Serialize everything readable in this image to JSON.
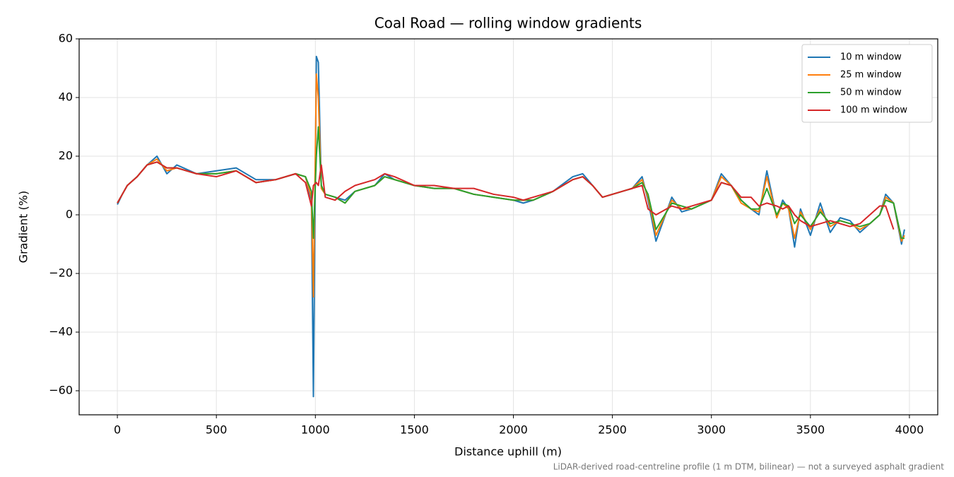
{
  "chart_data": {
    "type": "line",
    "title": "Coal Road — rolling window gradients",
    "x_label": "Distance uphill (m)",
    "y_label": "Gradient (%)",
    "footnote": "LiDAR-derived road-centreline profile (1 m DTM, bilinear) — not a surveyed asphalt gradient",
    "x": [
      0,
      25,
      50,
      100,
      150,
      200,
      250,
      300,
      400,
      500,
      600,
      700,
      800,
      900,
      950,
      980,
      990,
      1005,
      1015,
      1030,
      1050,
      1100,
      1150,
      1200,
      1300,
      1350,
      1400,
      1500,
      1600,
      1700,
      1800,
      1900,
      2000,
      2050,
      2100,
      2200,
      2300,
      2350,
      2400,
      2450,
      2500,
      2600,
      2650,
      2680,
      2720,
      2800,
      2850,
      2900,
      3000,
      3050,
      3100,
      3150,
      3200,
      3240,
      3280,
      3330,
      3360,
      3390,
      3420,
      3450,
      3500,
      3550,
      3600,
      3650,
      3700,
      3750,
      3800,
      3850,
      3880,
      3920,
      3960,
      3975
    ],
    "series": [
      {
        "name": "10 m window",
        "color": "#1f77b4",
        "values": [
          3.5,
          7,
          10,
          13,
          17,
          20,
          14,
          17,
          14,
          15,
          16,
          12,
          12,
          14,
          13,
          5,
          -62,
          54,
          52,
          10,
          7,
          6,
          5,
          8,
          10,
          14,
          12,
          10,
          9,
          9,
          7,
          6,
          5,
          4,
          5,
          8,
          13,
          14,
          10,
          6,
          7,
          9,
          13,
          5,
          -9,
          6,
          1,
          2,
          5,
          14,
          10,
          5,
          2,
          0,
          15,
          -1,
          5,
          2,
          -11,
          2,
          -7,
          4,
          -6,
          -1,
          -2,
          -6,
          -3,
          0,
          7,
          4,
          -10,
          -5
        ]
      },
      {
        "name": "25 m window",
        "color": "#ff7f0e",
        "values": [
          4,
          7,
          10,
          13,
          17,
          19,
          15,
          16,
          14,
          14,
          15,
          11,
          12,
          14,
          13,
          6,
          -28,
          48,
          40,
          9,
          7,
          6,
          4,
          8,
          10,
          13,
          12,
          10,
          9,
          9,
          7,
          6,
          5,
          5,
          5,
          8,
          12,
          13,
          10,
          6,
          7,
          9,
          12,
          6,
          -7,
          5,
          2,
          2,
          5,
          13,
          10,
          4,
          2,
          1,
          13,
          -1,
          4,
          2,
          -8,
          1,
          -5,
          2,
          -4,
          -2,
          -3,
          -5,
          -3,
          0,
          6,
          4,
          -9,
          -7
        ]
      },
      {
        "name": "50 m window",
        "color": "#2ca02c",
        "values": [
          4,
          7,
          10,
          13,
          17,
          18,
          16,
          16,
          14,
          14,
          15,
          11,
          12,
          14,
          13,
          8,
          -8,
          20,
          30,
          10,
          7,
          6,
          4,
          8,
          10,
          13,
          12,
          10,
          9,
          9,
          7,
          6,
          5,
          5,
          5,
          8,
          12,
          13,
          10,
          6,
          7,
          9,
          11,
          7,
          -5,
          4,
          3,
          2,
          5,
          11,
          10,
          5,
          2,
          2,
          9,
          0,
          4,
          3,
          -3,
          0,
          -4,
          1,
          -3,
          -2,
          -3,
          -4,
          -3,
          0,
          5,
          4,
          -8,
          -8
        ]
      },
      {
        "name": "100 m window",
        "color": "#d62728",
        "values": [
          4,
          7,
          10,
          13,
          17,
          18,
          16,
          16,
          14,
          13,
          15,
          11,
          12,
          14,
          11,
          3,
          10,
          11,
          10,
          17,
          6,
          5,
          8,
          10,
          12,
          14,
          13,
          10,
          10,
          9,
          9,
          7,
          6,
          5,
          6,
          8,
          12,
          13,
          10,
          6,
          7,
          9,
          10,
          2,
          0,
          3,
          2,
          3,
          5,
          11,
          10,
          6,
          6,
          3,
          4,
          3,
          2,
          3,
          0,
          -2,
          -4,
          -3,
          -2,
          -3,
          -4,
          -3,
          0,
          3,
          3,
          -5,
          null,
          null
        ]
      }
    ],
    "xlim": [
      -193,
      4143
    ],
    "ylim": [
      -68.2,
      60
    ],
    "xticks": [
      0,
      500,
      1000,
      1500,
      2000,
      2500,
      3000,
      3500,
      4000
    ],
    "yticks": [
      {
        "value": -60,
        "label": "−60"
      },
      {
        "value": -40,
        "label": "−40"
      },
      {
        "value": -20,
        "label": "−20"
      },
      0,
      20,
      40,
      60
    ],
    "grid": true,
    "legend": "upper right"
  }
}
